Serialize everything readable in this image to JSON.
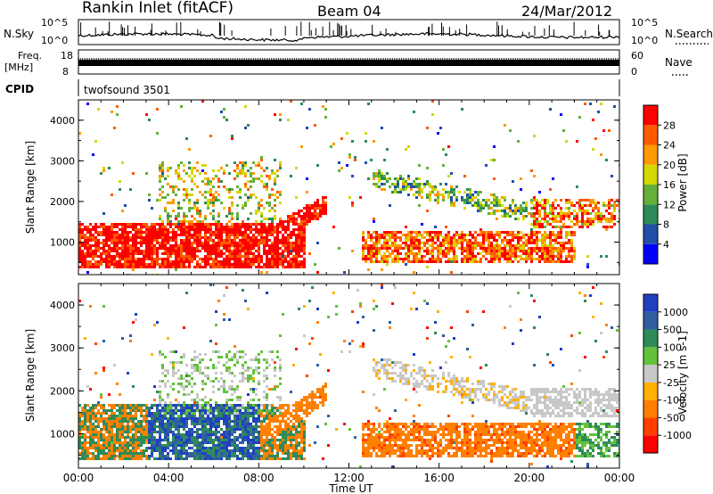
{
  "header": {
    "title": "Rankin Inlet (fitACF)",
    "beam": "Beam 04",
    "date": "24/Mar/2012"
  },
  "noise_panel": {
    "left_label": "N.Sky",
    "right_label": "N.Search",
    "ticks_left": [
      "10^5",
      "10^0"
    ],
    "ticks_right": [
      "10^5",
      "10^0"
    ]
  },
  "freq_panel": {
    "left_label_1": "Freq.",
    "left_label_2": "[MHz]",
    "right_label": "Nave",
    "ticks_left": [
      "18",
      "8"
    ],
    "ticks_right": [
      "60",
      "0"
    ]
  },
  "cpid_panel": {
    "left_label": "CPID",
    "value": "twofsound 3501"
  },
  "chart_data": [
    {
      "type": "heatmap",
      "name": "power",
      "ylabel": "Slant Range [km]",
      "y_ticks": [
        "1000",
        "2000",
        "3000",
        "4000"
      ],
      "ylim": [
        200,
        4500
      ],
      "colorbar_label": "Power [dB]",
      "colorbar_ticks": [
        "4",
        "8",
        "12",
        "16",
        "20",
        "24",
        "28"
      ],
      "colorbar_colors": [
        "#0000ff",
        "#1f4fa8",
        "#2e8b57",
        "#63b13a",
        "#d4d800",
        "#ff9900",
        "#ff5a00",
        "#ff0000"
      ]
    },
    {
      "type": "heatmap",
      "name": "velocity",
      "ylabel": "Slant Range [km]",
      "y_ticks": [
        "1000",
        "2000",
        "3000",
        "4000"
      ],
      "ylim": [
        200,
        4500
      ],
      "colorbar_label": "Velocity [m s-1]",
      "colorbar_ticks": [
        "1000",
        "500",
        "100",
        "25",
        "-25",
        "-100",
        "-500",
        "-1000"
      ],
      "colorbar_colors": [
        "#2040c0",
        "#2f5fa0",
        "#2e8b57",
        "#63c23a",
        "#c8c8c8",
        "#ffb000",
        "#ff8000",
        "#ff4000",
        "#ff0000"
      ]
    }
  ],
  "x_axis": {
    "label": "Time UT",
    "ticks": [
      "00:00",
      "04:00",
      "08:00",
      "12:00",
      "16:00",
      "20:00",
      "00:00"
    ]
  }
}
